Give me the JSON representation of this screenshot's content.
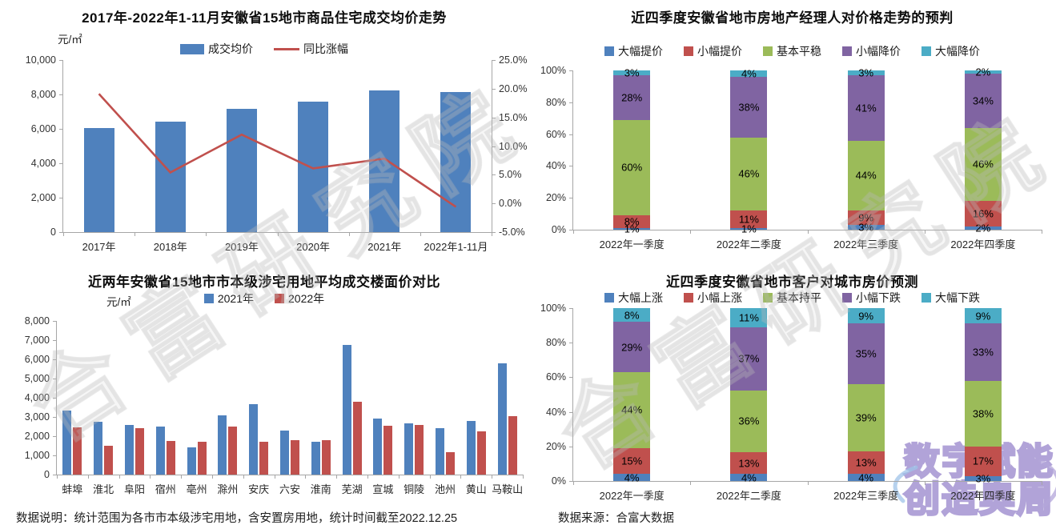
{
  "footer": {
    "left": "数据说明：统计范围为各市市本级涉宅用地，含安置房用地，统计时间截至2022.12.25",
    "right": "数据来源：合富大数据"
  },
  "watermarks": {
    "diagonal": "合富研究院",
    "logo_line1": "数字赋能",
    "logo_line2": "创造奥周"
  },
  "colors": {
    "bar_blue": "#4F81BD",
    "bar_red": "#C0504D",
    "green": "#9BBB59",
    "purple": "#8064A2",
    "teal": "#4BACC6",
    "axis_gray": "#A6A6A6"
  },
  "chart_data": [
    {
      "id": "avg-price-trend",
      "type": "bar",
      "subtype": "bar+line combo",
      "title": "2017年-2022年1-11月安徽省15地市商品住宅成交均价走势",
      "unit_label": "元/㎡",
      "categories": [
        "2017年",
        "2018年",
        "2019年",
        "2020年",
        "2021年",
        "2022年1-11月"
      ],
      "series": [
        {
          "name": "成交均价",
          "type": "bar",
          "color": "#4F81BD",
          "axis": "left",
          "values": [
            6050,
            6400,
            7150,
            7570,
            8220,
            8150
          ]
        },
        {
          "name": "同比涨幅",
          "type": "line",
          "color": "#C0504D",
          "axis": "right",
          "values": [
            19.1,
            5.4,
            12.0,
            6.1,
            7.8,
            -0.6
          ]
        }
      ],
      "left_axis": {
        "min": 0,
        "max": 10000,
        "ticks": [
          "10,000",
          "8,000",
          "6,000",
          "4,000",
          "2,000",
          "0"
        ]
      },
      "right_axis": {
        "min": -5,
        "max": 25,
        "ticks": [
          "25.0%",
          "20.0%",
          "15.0%",
          "10.0%",
          "5.0%",
          "0.0%",
          "-5.0%"
        ]
      },
      "grid": false,
      "legend_position": "top"
    },
    {
      "id": "manager-price-forecast",
      "type": "bar",
      "subtype": "stacked-100%",
      "title": "近四季度安徽省地市房地产经理人对价格走势的预判",
      "categories": [
        "2022年一季度",
        "2022年二季度",
        "2022年三季度",
        "2022年四季度"
      ],
      "series": [
        {
          "name": "大幅提价",
          "color": "#4F81BD",
          "values": [
            1,
            1,
            3,
            2
          ]
        },
        {
          "name": "小幅提价",
          "color": "#C0504D",
          "values": [
            8,
            11,
            9,
            16
          ]
        },
        {
          "name": "基本平稳",
          "color": "#9BBB59",
          "values": [
            60,
            46,
            44,
            46
          ]
        },
        {
          "name": "小幅降价",
          "color": "#8064A2",
          "values": [
            28,
            38,
            41,
            34
          ]
        },
        {
          "name": "大幅降价",
          "color": "#4BACC6",
          "values": [
            3,
            4,
            3,
            2
          ]
        }
      ],
      "y_ticks": [
        "100%",
        "80%",
        "60%",
        "40%",
        "20%",
        "0%"
      ],
      "value_suffix": "%",
      "grid": false,
      "legend_position": "top"
    },
    {
      "id": "land-floor-price",
      "type": "bar",
      "subtype": "grouped",
      "title": "近两年安徽省15地市市本级涉宅用地平均成交楼面价对比",
      "unit_label": "元/㎡",
      "categories": [
        "蚌埠",
        "淮北",
        "阜阳",
        "宿州",
        "亳州",
        "滁州",
        "安庆",
        "六安",
        "淮南",
        "芜湖",
        "宣城",
        "铜陵",
        "池州",
        "黄山",
        "马鞍山"
      ],
      "series": [
        {
          "name": "2021年",
          "color": "#4F81BD",
          "values": [
            3350,
            2750,
            2600,
            2500,
            1400,
            3100,
            3650,
            2300,
            1700,
            6750,
            2900,
            2650,
            2400,
            2800,
            5800
          ]
        },
        {
          "name": "2022年",
          "color": "#C0504D",
          "values": [
            2450,
            1500,
            2400,
            1750,
            1700,
            2500,
            1700,
            1800,
            1800,
            3800,
            2550,
            2600,
            1150,
            2250,
            3050
          ]
        }
      ],
      "y_axis": {
        "min": 0,
        "max": 8000,
        "ticks": [
          "8,000",
          "7,000",
          "6,000",
          "5,000",
          "4,000",
          "3,000",
          "2,000",
          "1,000",
          "0"
        ]
      },
      "grid": false,
      "legend_position": "top"
    },
    {
      "id": "customer-price-forecast",
      "type": "bar",
      "subtype": "stacked-100%",
      "title": "近四季度安徽省地市客户对城市房价预测",
      "categories": [
        "2022年一季度",
        "2022年二季度",
        "2022年三季度",
        "2022年四季度"
      ],
      "series": [
        {
          "name": "大幅上涨",
          "color": "#4F81BD",
          "values": [
            4,
            4,
            4,
            3
          ]
        },
        {
          "name": "小幅上涨",
          "color": "#C0504D",
          "values": [
            15,
            13,
            13,
            17
          ]
        },
        {
          "name": "基本持平",
          "color": "#9BBB59",
          "values": [
            44,
            36,
            39,
            38
          ]
        },
        {
          "name": "小幅下跌",
          "color": "#8064A2",
          "values": [
            29,
            37,
            35,
            33
          ]
        },
        {
          "name": "大幅下跌",
          "color": "#4BACC6",
          "values": [
            8,
            11,
            9,
            9
          ]
        }
      ],
      "y_ticks": [
        "100%",
        "80%",
        "60%",
        "40%",
        "20%",
        "0%"
      ],
      "value_suffix": "%",
      "grid": false,
      "legend_position": "top"
    }
  ]
}
